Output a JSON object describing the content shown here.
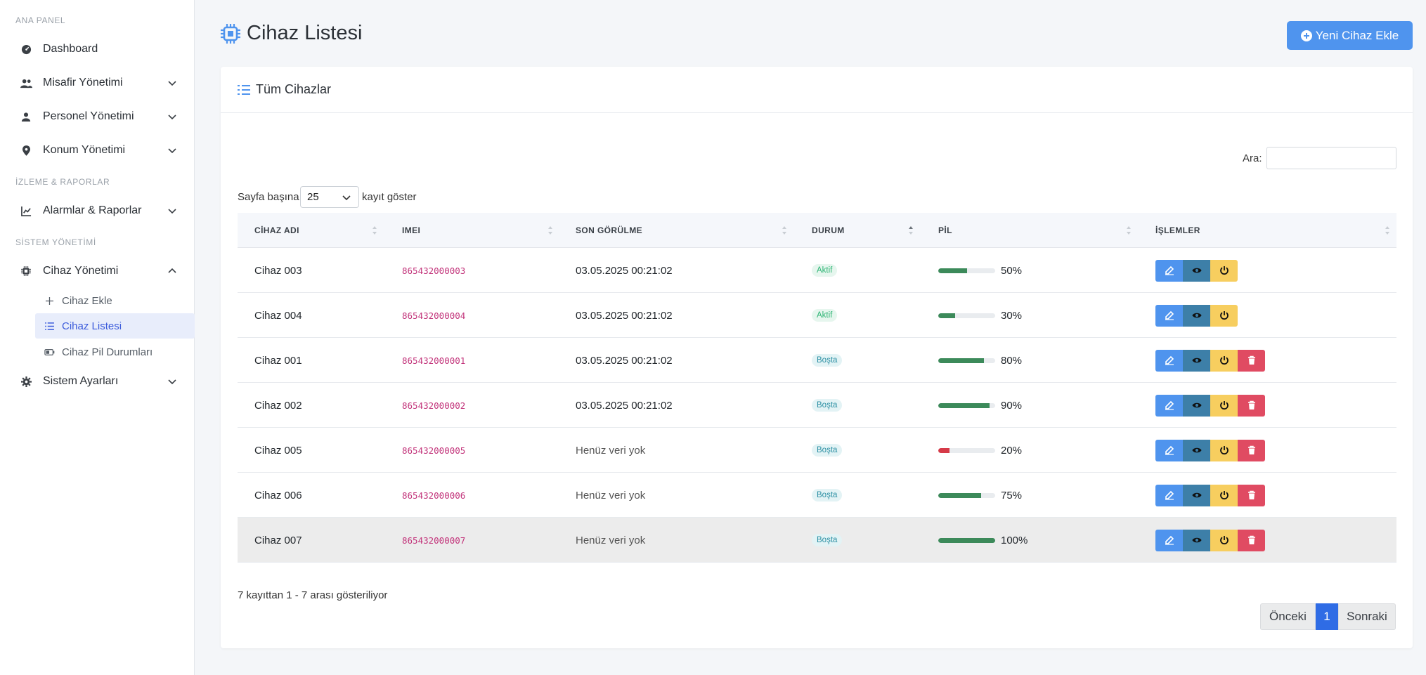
{
  "sidebar": {
    "sections": [
      "ANA PANEL",
      "İZLEME & RAPORLAR",
      "SİSTEM YÖNETİMİ"
    ],
    "items": [
      {
        "label": "Dashboard",
        "icon": "gauge-icon"
      },
      {
        "label": "Misafir Yönetimi",
        "icon": "users-icon"
      },
      {
        "label": "Personel Yönetimi",
        "icon": "user-icon"
      },
      {
        "label": "Konum Yönetimi",
        "icon": "map-pin-icon"
      },
      {
        "label": "Alarmlar & Raporlar",
        "icon": "chart-icon"
      },
      {
        "label": "Cihaz Yönetimi",
        "icon": "chip-icon"
      },
      {
        "label": "Sistem Ayarları",
        "icon": "gear-icon"
      }
    ],
    "subitems": [
      {
        "label": "Cihaz Ekle",
        "icon": "plus-icon"
      },
      {
        "label": "Cihaz Listesi",
        "icon": "list-icon",
        "active": true
      },
      {
        "label": "Cihaz Pil Durumları",
        "icon": "battery-icon"
      }
    ]
  },
  "header": {
    "title": "Cihaz Listesi",
    "add_button": "Yeni Cihaz Ekle"
  },
  "card": {
    "title": "Tüm Cihazlar",
    "search_label": "Ara:",
    "search_value": "",
    "length_prefix": "Sayfa başına",
    "length_value": "25",
    "length_suffix": "kayıt göster",
    "columns": [
      "CİHAZ ADI",
      "IMEI",
      "SON GÖRÜLME",
      "DURUM",
      "PİL",
      "İŞLEMLER"
    ],
    "rows": [
      {
        "name": "Cihaz 003",
        "imei": "865432000003",
        "seen": "03.05.2025 00:21:02",
        "state": "Aktif",
        "battery": 50,
        "battery_label": "50%",
        "deletable": false
      },
      {
        "name": "Cihaz 004",
        "imei": "865432000004",
        "seen": "03.05.2025 00:21:02",
        "state": "Aktif",
        "battery": 30,
        "battery_label": "30%",
        "deletable": false
      },
      {
        "name": "Cihaz 001",
        "imei": "865432000001",
        "seen": "03.05.2025 00:21:02",
        "state": "Boşta",
        "battery": 80,
        "battery_label": "80%",
        "deletable": true
      },
      {
        "name": "Cihaz 002",
        "imei": "865432000002",
        "seen": "03.05.2025 00:21:02",
        "state": "Boşta",
        "battery": 90,
        "battery_label": "90%",
        "deletable": true
      },
      {
        "name": "Cihaz 005",
        "imei": "865432000005",
        "seen": "Henüz veri yok",
        "state": "Boşta",
        "battery": 20,
        "battery_label": "20%",
        "deletable": true
      },
      {
        "name": "Cihaz 006",
        "imei": "865432000006",
        "seen": "Henüz veri yok",
        "state": "Boşta",
        "battery": 75,
        "battery_label": "75%",
        "deletable": true
      },
      {
        "name": "Cihaz 007",
        "imei": "865432000007",
        "seen": "Henüz veri yok",
        "state": "Boşta",
        "battery": 100,
        "battery_label": "100%",
        "deletable": true
      }
    ],
    "info": "7 kayıttan 1 - 7 arası gösteriliyor",
    "pager": {
      "prev": "Önceki",
      "current": "1",
      "next": "Sonraki"
    }
  },
  "colors": {
    "accent": "#4f94ee",
    "battery_ok": "#3c8a5a",
    "battery_low": "#d63a48",
    "pager_active": "#2f6ce5"
  }
}
